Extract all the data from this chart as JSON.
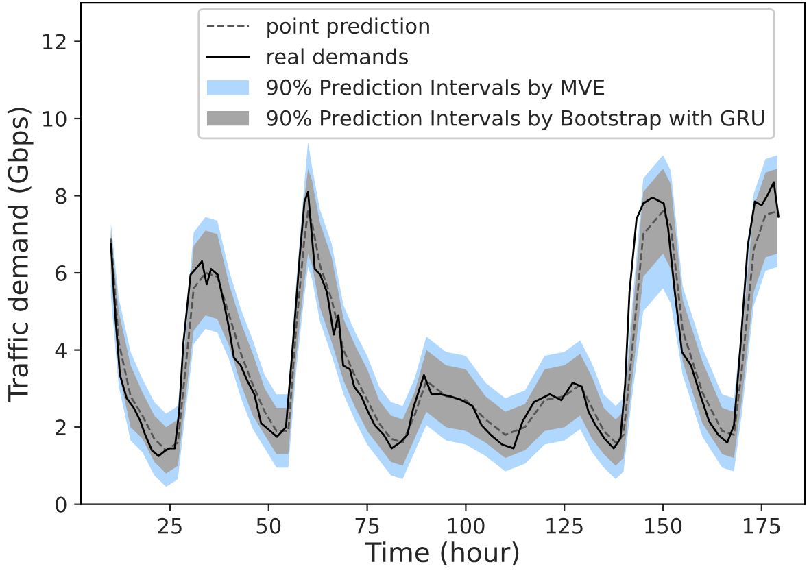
{
  "chart_data": {
    "type": "line",
    "xlabel": "Time (hour)",
    "ylabel": "Traffic demand (Gbps)",
    "xlim": [
      2.4,
      186
    ],
    "xticks": [
      25,
      50,
      75,
      100,
      125,
      150,
      175
    ],
    "ylim": [
      0,
      13
    ],
    "yticks": [
      0,
      2,
      4,
      6,
      8,
      10,
      12
    ],
    "grid": false,
    "legend": "top",
    "marker": "none",
    "series": [
      {
        "name": "point prediction",
        "type": "line",
        "line_style": "dashed",
        "color": "#555555",
        "x": [
          10,
          12,
          15,
          18,
          21,
          24,
          27,
          29,
          31,
          34,
          37,
          40,
          43,
          46,
          49,
          52,
          55,
          57,
          59,
          60,
          61,
          63,
          66,
          69,
          72,
          75,
          78,
          81,
          84,
          87,
          90,
          95,
          100,
          105,
          110,
          115,
          120,
          125,
          129,
          132,
          135,
          138,
          140,
          142,
          145,
          150,
          152,
          155,
          160,
          165,
          168,
          170,
          173,
          176,
          179
        ],
        "values": [
          6.9,
          4.2,
          2.8,
          2.3,
          1.7,
          1.4,
          1.6,
          3.6,
          5.6,
          6.0,
          5.9,
          4.9,
          3.9,
          3.1,
          2.4,
          1.9,
          1.9,
          4.6,
          6.8,
          7.6,
          7.3,
          6.2,
          5.3,
          4.0,
          3.3,
          2.7,
          2.1,
          1.7,
          1.6,
          2.3,
          3.2,
          2.8,
          2.7,
          2.2,
          1.8,
          2.0,
          2.7,
          2.8,
          3.1,
          2.5,
          1.9,
          1.6,
          1.8,
          3.8,
          7.0,
          7.6,
          7.2,
          4.5,
          2.9,
          1.9,
          1.8,
          3.5,
          6.6,
          7.5,
          7.6
        ]
      },
      {
        "name": "real demands",
        "type": "line",
        "line_style": "solid",
        "color": "#000000",
        "x": [
          10,
          11.2,
          12.3,
          14,
          15.8,
          17.5,
          18.7,
          20.4,
          22.1,
          23.9,
          25,
          26.2,
          27.3,
          28.4,
          30.2,
          31.9,
          33.1,
          34.3,
          35.4,
          37.1,
          38.9,
          40,
          41.2,
          42.9,
          44.6,
          46.4,
          48.1,
          50.4,
          52.1,
          54.4,
          56.2,
          57.9,
          59.1,
          60,
          60.8,
          61.7,
          63.1,
          64.8,
          66.5,
          67.7,
          68.9,
          70.6,
          71.7,
          73.5,
          75.2,
          76.9,
          79.2,
          81.2,
          83.3,
          85.2,
          86.7,
          89.4,
          91.3,
          93.7,
          96,
          98.9,
          101.7,
          104,
          106.3,
          109.2,
          112.1,
          114.4,
          117.3,
          121.3,
          124.2,
          127.1,
          129.4,
          131.1,
          132.9,
          135.2,
          137.5,
          139.2,
          140.4,
          141.5,
          143.3,
          145,
          147.3,
          150.2,
          151.3,
          153,
          154.8,
          157.1,
          159.4,
          161.7,
          164,
          166.3,
          168,
          169.8,
          171.5,
          173.3,
          175,
          176.7,
          178.1,
          179.3
        ],
        "values": [
          6.75,
          4.8,
          3.35,
          2.75,
          2.5,
          2.15,
          1.8,
          1.4,
          1.25,
          1.4,
          1.45,
          1.45,
          2.4,
          4.2,
          5.95,
          6.15,
          6.3,
          5.7,
          6.1,
          5.95,
          5.1,
          4.55,
          3.8,
          3.6,
          3.2,
          2.85,
          2.1,
          1.9,
          1.75,
          2.0,
          4.2,
          6.45,
          7.85,
          8.1,
          7.15,
          6.1,
          5.95,
          5.5,
          4.4,
          4.9,
          3.6,
          3.5,
          3.05,
          2.8,
          2.4,
          2.05,
          1.8,
          1.45,
          1.6,
          1.8,
          2.5,
          3.35,
          2.85,
          2.85,
          2.8,
          2.7,
          2.55,
          2.05,
          1.8,
          1.55,
          1.45,
          2.15,
          2.65,
          2.85,
          2.7,
          3.15,
          3.05,
          2.4,
          2.05,
          1.7,
          1.45,
          1.7,
          3.1,
          5.5,
          7.4,
          7.8,
          7.95,
          7.8,
          7.15,
          5.5,
          3.95,
          3.6,
          2.85,
          2.15,
          1.8,
          1.6,
          2.05,
          4.3,
          6.7,
          7.85,
          7.75,
          8.05,
          8.35,
          7.45
        ]
      },
      {
        "name": "90% Prediction Intervals by MVE",
        "type": "line",
        "color": "#b0d8ff",
        "x": [
          10,
          12,
          15,
          18,
          21,
          24,
          27,
          29,
          31,
          34,
          37,
          40,
          43,
          46,
          49,
          52,
          55,
          57,
          59,
          60,
          61,
          63,
          66,
          69,
          72,
          75,
          78,
          81,
          84,
          87,
          90,
          95,
          100,
          105,
          110,
          115,
          120,
          125,
          129,
          132,
          135,
          138,
          140,
          142,
          145,
          150,
          152,
          155,
          160,
          165,
          168,
          170,
          173,
          176,
          179
        ],
        "values": [
          null,
          null,
          null,
          null,
          null,
          null,
          null,
          null,
          null,
          null,
          null,
          null,
          null,
          null,
          null,
          null,
          null,
          null,
          null,
          null,
          null,
          null,
          null,
          null,
          null,
          null,
          null,
          null,
          null,
          null,
          null,
          null,
          null,
          null,
          null,
          null,
          null,
          null,
          null,
          null,
          null,
          null,
          null,
          null,
          null,
          null,
          null,
          null,
          null,
          null,
          null,
          null,
          null,
          null,
          null
        ],
        "lower": [
          5.4,
          3.05,
          1.65,
          1.35,
          0.75,
          0.45,
          0.65,
          2.45,
          4.15,
          4.55,
          4.45,
          3.75,
          2.75,
          1.95,
          1.45,
          0.95,
          0.95,
          3.45,
          5.35,
          6.15,
          5.85,
          4.75,
          3.85,
          2.85,
          2.15,
          1.55,
          1.15,
          0.75,
          0.65,
          1.35,
          2.05,
          1.65,
          1.55,
          1.25,
          0.85,
          1.05,
          1.55,
          1.65,
          1.95,
          1.35,
          0.95,
          0.65,
          0.85,
          2.65,
          5.0,
          5.6,
          5.2,
          3.35,
          1.75,
          0.95,
          0.85,
          2.35,
          5.15,
          6.05,
          6.15
        ],
        "upper": [
          7.3,
          5.35,
          3.95,
          3.25,
          2.65,
          2.35,
          2.55,
          4.75,
          7.05,
          7.45,
          7.35,
          6.05,
          5.05,
          4.25,
          3.35,
          2.85,
          2.85,
          5.75,
          8.25,
          9.4,
          8.75,
          7.65,
          6.75,
          5.15,
          4.45,
          3.85,
          3.05,
          2.65,
          2.55,
          3.25,
          4.35,
          3.95,
          3.85,
          3.15,
          2.75,
          2.95,
          3.85,
          3.95,
          4.25,
          3.65,
          2.85,
          2.55,
          2.75,
          4.95,
          8.45,
          9.05,
          8.65,
          5.65,
          4.05,
          2.85,
          2.75,
          4.65,
          8.05,
          8.95,
          9.05
        ]
      },
      {
        "name": "90% Prediction Intervals by Bootstrap with GRU",
        "type": "line",
        "color": "#a6a6a6",
        "x": [
          10,
          12,
          15,
          18,
          21,
          24,
          27,
          29,
          31,
          34,
          37,
          40,
          43,
          46,
          49,
          52,
          55,
          57,
          59,
          60,
          61,
          63,
          66,
          69,
          72,
          75,
          78,
          81,
          84,
          87,
          90,
          95,
          100,
          105,
          110,
          115,
          120,
          125,
          129,
          132,
          135,
          138,
          140,
          142,
          145,
          150,
          152,
          155,
          160,
          165,
          168,
          170,
          173,
          176,
          179
        ],
        "values": [
          null,
          null,
          null,
          null,
          null,
          null,
          null,
          null,
          null,
          null,
          null,
          null,
          null,
          null,
          null,
          null,
          null,
          null,
          null,
          null,
          null,
          null,
          null,
          null,
          null,
          null,
          null,
          null,
          null,
          null,
          null,
          null,
          null,
          null,
          null,
          null,
          null,
          null,
          null,
          null,
          null,
          null,
          null,
          null,
          null,
          null,
          null,
          null,
          null,
          null,
          null,
          null,
          null,
          null,
          null
        ],
        "lower": [
          6.0,
          3.4,
          2.0,
          1.7,
          1.1,
          0.8,
          1.0,
          2.8,
          4.5,
          4.9,
          4.8,
          4.1,
          3.1,
          2.3,
          1.8,
          1.3,
          1.3,
          3.8,
          5.7,
          6.5,
          6.2,
          5.1,
          4.2,
          3.2,
          2.5,
          1.9,
          1.5,
          1.1,
          1.0,
          1.7,
          2.4,
          2.0,
          1.9,
          1.6,
          1.2,
          1.4,
          1.9,
          2.0,
          2.3,
          1.7,
          1.3,
          1.0,
          1.2,
          3.0,
          5.9,
          6.5,
          6.1,
          3.7,
          2.1,
          1.3,
          1.2,
          2.7,
          5.5,
          6.4,
          6.5
        ],
        "upper": [
          7.1,
          5.0,
          3.6,
          2.9,
          2.3,
          2.0,
          2.2,
          4.4,
          6.7,
          7.1,
          7.0,
          5.7,
          4.7,
          3.9,
          3.0,
          2.5,
          2.5,
          5.4,
          7.9,
          8.7,
          8.4,
          7.3,
          6.4,
          4.8,
          4.1,
          3.5,
          2.7,
          2.3,
          2.2,
          2.9,
          4.0,
          3.6,
          3.5,
          2.8,
          2.4,
          2.6,
          3.5,
          3.6,
          3.9,
          3.3,
          2.5,
          2.2,
          2.4,
          4.6,
          8.1,
          8.7,
          8.3,
          5.3,
          3.7,
          2.5,
          2.4,
          4.3,
          7.7,
          8.6,
          8.7
        ]
      }
    ]
  }
}
